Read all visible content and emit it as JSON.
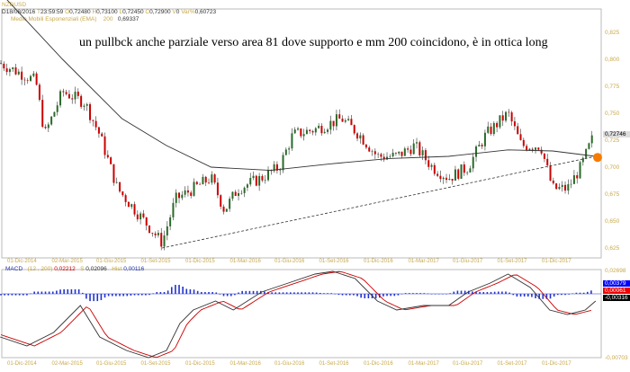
{
  "header": {
    "symbol": "NZDUSD",
    "date": "18/08/2016",
    "time": "23:59:59",
    "open": "0,72480",
    "high": "0,73100",
    "low": "0,72450",
    "close": "0,72900",
    "volume": "0",
    "var_pct": "0,60723",
    "ema_label": "Medie Mobili Esponenziali (EMA)",
    "ema_period": "200",
    "ema_value": "0,69337"
  },
  "annotation": "un pullbck anche parziale verso area 81 dove supporto e mm 200 coincidono, è in ottica long",
  "chart_data": [
    {
      "type": "candlestick",
      "title": "NZDUSD",
      "price_ticks": [
        "0,825",
        "0,800",
        "0,775",
        "0,750",
        "0,725",
        "0,700",
        "0,675",
        "0,650",
        "0,625"
      ],
      "ylim": [
        0.62,
        0.835
      ],
      "last_price": "0,72746",
      "x_labels": [
        "01-Dic-2014",
        "02-Mar-2015",
        "01-Giu-2015",
        "01-Set-2015",
        "01-Dic-2015",
        "01-Mar-2016",
        "01-Giu-2016",
        "01-Set-2016",
        "01-Dic-2016",
        "01-Mar-2017",
        "01-Giu-2017",
        "01-Set-2017",
        "01-Dic-2017"
      ],
      "price_path_months_from_dec2014": [
        [
          -1,
          0.795
        ],
        [
          1.2,
          0.78
        ],
        [
          1.8,
          0.73
        ],
        [
          3,
          0.77
        ],
        [
          4.5,
          0.76
        ],
        [
          5.5,
          0.73
        ],
        [
          6.7,
          0.68
        ],
        [
          7.9,
          0.66
        ],
        [
          9.7,
          0.63
        ],
        [
          10.6,
          0.67
        ],
        [
          11.8,
          0.68
        ],
        [
          13,
          0.69
        ],
        [
          13.9,
          0.66
        ],
        [
          14.8,
          0.68
        ],
        [
          16.4,
          0.69
        ],
        [
          17.6,
          0.7
        ],
        [
          18.5,
          0.73
        ],
        [
          20,
          0.735
        ],
        [
          21.8,
          0.745
        ],
        [
          23,
          0.73
        ],
        [
          24.2,
          0.71
        ],
        [
          25.5,
          0.71
        ],
        [
          26.7,
          0.72
        ],
        [
          27.9,
          0.7
        ],
        [
          29,
          0.69
        ],
        [
          30.3,
          0.7
        ],
        [
          31.5,
          0.73
        ],
        [
          33,
          0.75
        ],
        [
          33.9,
          0.72
        ],
        [
          35.2,
          0.72
        ],
        [
          36,
          0.68
        ],
        [
          37,
          0.68
        ],
        [
          37.9,
          0.7
        ],
        [
          38.7,
          0.727
        ]
      ],
      "ema200_path": [
        [
          -1.2,
          0.862
        ],
        [
          3,
          0.8
        ],
        [
          7,
          0.745
        ],
        [
          10,
          0.72
        ],
        [
          13,
          0.7
        ],
        [
          17,
          0.697
        ],
        [
          21,
          0.703
        ],
        [
          25,
          0.708
        ],
        [
          29,
          0.71
        ],
        [
          33,
          0.716
        ],
        [
          36,
          0.715
        ],
        [
          38.9,
          0.71
        ]
      ],
      "trendline": [
        [
          9.7,
          0.625
        ],
        [
          38.9,
          0.71
        ]
      ]
    },
    {
      "type": "line",
      "title": "MACD",
      "params": "(12 , 200)",
      "macd": "0,02212",
      "signal_label": "S",
      "signal": "0,02096",
      "hist_label": "Hist",
      "hist": "0,00116",
      "axis_top": "0,02698",
      "axis_bottom": "-0,00703",
      "tag_hist": "0,00379",
      "tag_signal": "0,00061",
      "tag_macd": "-0,00316",
      "macd_path": [
        [
          -1.2,
          -0.0192
        ],
        [
          0.6,
          -0.0232
        ],
        [
          2.4,
          -0.0172
        ],
        [
          4.2,
          -0.0052
        ],
        [
          5.5,
          -0.0192
        ],
        [
          7.3,
          -0.0252
        ],
        [
          8.8,
          -0.0284
        ],
        [
          10,
          -0.0252
        ],
        [
          10.9,
          -0.0132
        ],
        [
          11.8,
          -0.0072
        ],
        [
          13.3,
          -0.0032
        ],
        [
          14.5,
          -0.0072
        ],
        [
          16.4,
          0.0008
        ],
        [
          18.2,
          0.0048
        ],
        [
          20,
          0.0088
        ],
        [
          21.2,
          0.01
        ],
        [
          22.7,
          0.0068
        ],
        [
          24.2,
          -0.0032
        ],
        [
          25.5,
          -0.0072
        ],
        [
          27.3,
          -0.0052
        ],
        [
          29,
          -0.0052
        ],
        [
          30.3,
          0.0008
        ],
        [
          31.8,
          0.0048
        ],
        [
          33,
          0.0088
        ],
        [
          34.5,
          0.0028
        ],
        [
          35.8,
          -0.0072
        ],
        [
          37,
          -0.0092
        ],
        [
          38.2,
          -0.0072
        ],
        [
          38.9,
          -0.0032
        ]
      ]
    }
  ]
}
